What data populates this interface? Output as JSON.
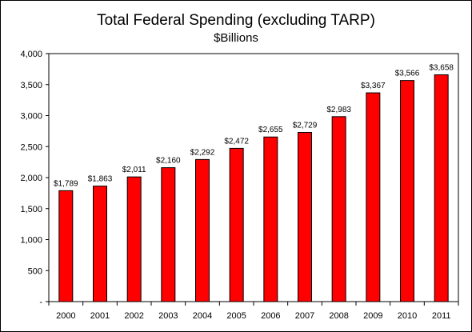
{
  "chart_data": {
    "type": "bar",
    "title": "Total Federal Spending (excluding TARP)",
    "subtitle": "$Billions",
    "categories": [
      "2000",
      "2001",
      "2002",
      "2003",
      "2004",
      "2005",
      "2006",
      "2007",
      "2008",
      "2009",
      "2010",
      "2011"
    ],
    "values": [
      1789,
      1863,
      2011,
      2160,
      2292,
      2472,
      2655,
      2729,
      2983,
      3367,
      3566,
      3658
    ],
    "data_labels": [
      "$1,789",
      "$1,863",
      "$2,011",
      "$2,160",
      "$2,292",
      "$2,472",
      "$2,655",
      "$2,729",
      "$2,983",
      "$3,367",
      "$3,566",
      "$3,658"
    ],
    "y_ticks": [
      0,
      500,
      1000,
      1500,
      2000,
      2500,
      3000,
      3500,
      4000
    ],
    "y_tick_labels": [
      "-",
      "500",
      "1,000",
      "1,500",
      "2,000",
      "2,500",
      "3,000",
      "3,500",
      "4,000"
    ],
    "ylim": [
      0,
      4000
    ],
    "xlabel": "",
    "ylabel": "",
    "grid": false,
    "legend": "none",
    "bar_color": "#ff0000",
    "bar_edge_color": "#000000"
  }
}
